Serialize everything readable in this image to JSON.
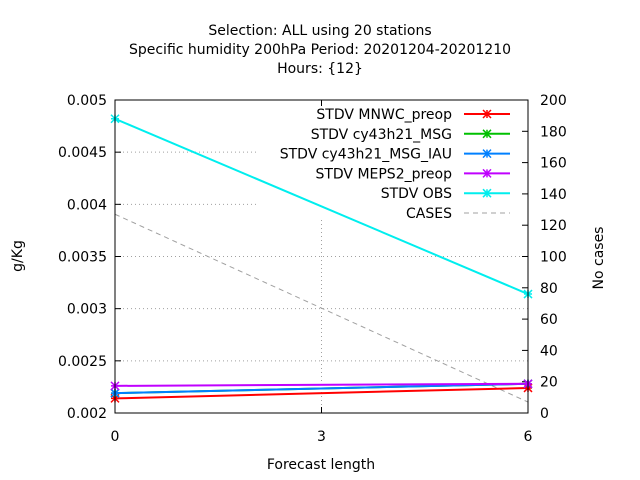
{
  "chart_data": {
    "type": "line",
    "title_lines": [
      "Selection: ALL using    20 stations",
      "Specific humidity 200hPa   Period: 20201204-20201210",
      "Hours: {12}"
    ],
    "xlabel": "Forecast length",
    "ylabel": "g/Kg",
    "y2label": "No cases",
    "xlim": [
      0,
      6
    ],
    "ylim": [
      0.002,
      0.005
    ],
    "y2lim": [
      0,
      200
    ],
    "xticks": [
      0,
      3,
      6
    ],
    "yticks": [
      0.002,
      0.0025,
      0.003,
      0.0035,
      0.004,
      0.0045,
      0.005
    ],
    "ytick_labels": [
      "0.002",
      "0.0025",
      "0.003",
      "0.0035",
      "0.004",
      "0.0045",
      "0.005"
    ],
    "y2ticks": [
      0,
      20,
      40,
      60,
      80,
      100,
      120,
      140,
      160,
      180,
      200
    ],
    "grid": true,
    "legend_position": "top-right",
    "x": [
      0,
      6
    ],
    "series": [
      {
        "name": "STDV MNWC_preop",
        "color": "#ff0000",
        "axis": "y",
        "values": [
          0.00214,
          0.00224
        ]
      },
      {
        "name": "STDV cy43h21_MSG",
        "color": "#00c000",
        "axis": "y",
        "values": [
          0.00219,
          0.00228
        ]
      },
      {
        "name": "STDV cy43h21_MSG_IAU",
        "color": "#0080ff",
        "axis": "y",
        "values": [
          0.00219,
          0.00228
        ]
      },
      {
        "name": "STDV MEPS2_preop",
        "color": "#c000ff",
        "axis": "y",
        "values": [
          0.00226,
          0.00228
        ]
      },
      {
        "name": "STDV OBS",
        "color": "#00eeee",
        "axis": "y",
        "values": [
          0.00482,
          0.00314
        ]
      },
      {
        "name": "CASES",
        "color": "#a0a0a0",
        "axis": "y2",
        "dashed": true,
        "values": [
          127,
          7
        ]
      }
    ]
  }
}
